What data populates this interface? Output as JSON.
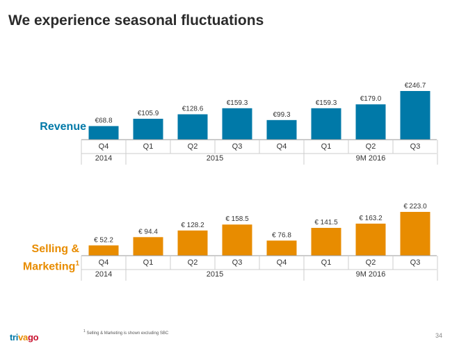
{
  "title": "We experience seasonal fluctuations",
  "chart_data": [
    {
      "type": "bar",
      "name": "revenue",
      "row_label": "Revenue",
      "categories": [
        "Q4",
        "Q1",
        "Q2",
        "Q3",
        "Q4",
        "Q1",
        "Q2",
        "Q3"
      ],
      "groups": [
        {
          "label": "2014",
          "span": 1
        },
        {
          "label": "2015",
          "span": 4
        },
        {
          "label": "9M 2016",
          "span": 3
        }
      ],
      "values": [
        68.8,
        105.9,
        128.6,
        159.3,
        99.3,
        159.3,
        179.0,
        246.7
      ],
      "value_labels": [
        "€68.8",
        "€105.9",
        "€128.6",
        "€159.3",
        "€99.3",
        "€159.3",
        "€179.0",
        "€246.7"
      ],
      "ylim": [
        0,
        250
      ],
      "color": "#0079a8"
    },
    {
      "type": "bar",
      "name": "selling-marketing",
      "row_label": "Selling &",
      "row_label_line2": "Marketing",
      "footnote_marker": "1",
      "categories": [
        "Q4",
        "Q1",
        "Q2",
        "Q3",
        "Q4",
        "Q1",
        "Q2",
        "Q3"
      ],
      "groups": [
        {
          "label": "2014",
          "span": 1
        },
        {
          "label": "2015",
          "span": 4
        },
        {
          "label": "9M 2016",
          "span": 3
        }
      ],
      "values": [
        52.2,
        94.4,
        128.2,
        158.5,
        76.8,
        141.5,
        163.2,
        223.0
      ],
      "value_labels": [
        "€ 52.2",
        "€ 94.4",
        "€ 128.2",
        "€ 158.5",
        "€ 76.8",
        "€ 141.5",
        "€ 163.2",
        "€ 223.0"
      ],
      "ylim": [
        0,
        250
      ],
      "color": "#e88c00"
    }
  ],
  "footnote": {
    "marker": "1",
    "text": "Selling & Marketing is shown excluding SBC"
  },
  "logo": {
    "part1": "tri",
    "part2": "va",
    "part3": "go"
  },
  "page_number": "34"
}
